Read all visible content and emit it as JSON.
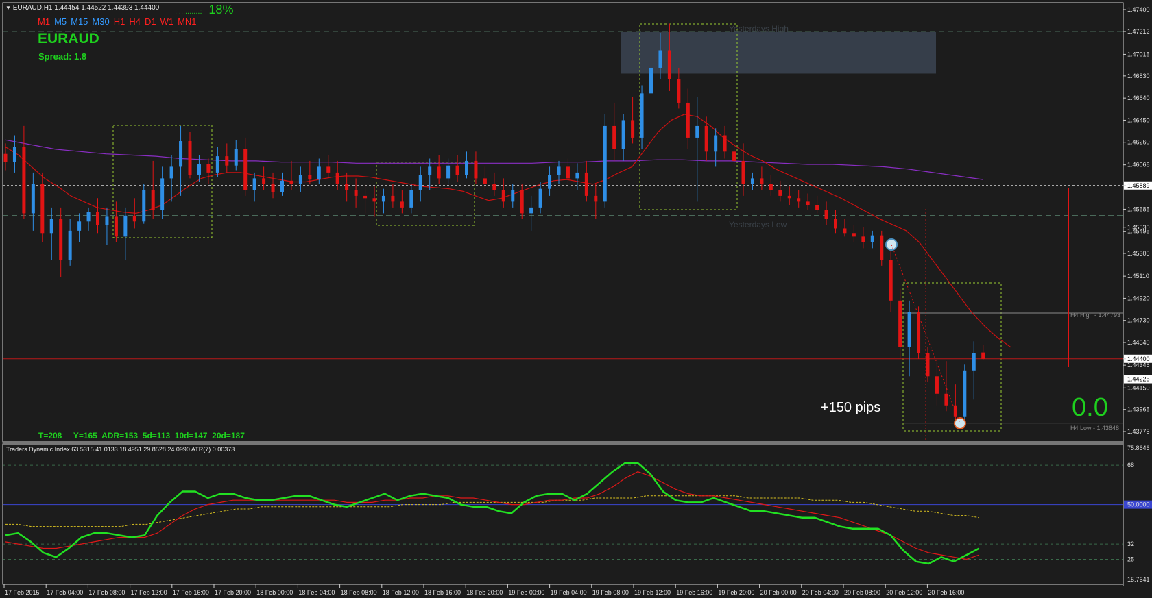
{
  "header": {
    "symbol_line": "EURAUD,H1  1.44454 1.44522 1.44393 1.44400",
    "progress_bar": ":|..........:",
    "progress_pct": "18%",
    "timeframes": [
      {
        "label": "M1",
        "color": "#ff2020"
      },
      {
        "label": "M5",
        "color": "#3399ff"
      },
      {
        "label": "M15",
        "color": "#3399ff"
      },
      {
        "label": "M30",
        "color": "#3399ff"
      },
      {
        "label": "H1",
        "color": "#ff2020"
      },
      {
        "label": "H4",
        "color": "#ff2020"
      },
      {
        "label": "D1",
        "color": "#ff2020"
      },
      {
        "label": "W1",
        "color": "#ff2020"
      },
      {
        "label": "MN1",
        "color": "#ff2020"
      }
    ],
    "pair": "EURAUD",
    "spread": "Spread: 1.8"
  },
  "overlay": {
    "yesterdays_high": "Yesterdays High",
    "yesterdays_low": "Yesterdays Low",
    "pips": "+150 pips",
    "big_value": "0.0",
    "h4_high": "H4 High - 1.44793",
    "h4_low": "H4 Low - 1.43848",
    "stats": "T=208     Y=165  ADR=153  5d=113  10d=147  20d=187"
  },
  "indicator": {
    "title": "Traders Dynamic Index 63.5315 41.0133 18.4951 29.8528 24.0990  ATR(7) 0.00373"
  },
  "colors": {
    "bull": "#2f8fe6",
    "bear": "#e11414",
    "ma_red": "#cc1111",
    "ma_purple": "#8a2ec4",
    "green_text": "#1ed01e",
    "box": "#9acd32"
  },
  "chart_data": {
    "type": "candlestick",
    "symbol": "EURAUD",
    "timeframe": "H1",
    "price_axis_labels": [
      "1.47400",
      "1.47212",
      "1.47015",
      "1.46830",
      "1.46640",
      "1.46450",
      "1.46260",
      "1.46066",
      "1.45889",
      "1.45685",
      "1.45530",
      "1.45495",
      "1.45305",
      "1.45110",
      "1.44920",
      "1.44730",
      "1.44540",
      "1.44400",
      "1.44345",
      "1.44225",
      "1.44150",
      "1.43965",
      "1.43775"
    ],
    "price_ylim": [
      1.4375,
      1.4746
    ],
    "time_labels": [
      "17 Feb 2015",
      "17 Feb 04:00",
      "17 Feb 08:00",
      "17 Feb 12:00",
      "17 Feb 16:00",
      "17 Feb 20:00",
      "18 Feb 00:00",
      "18 Feb 04:00",
      "18 Feb 08:00",
      "18 Feb 12:00",
      "18 Feb 16:00",
      "18 Feb 20:00",
      "19 Feb 00:00",
      "19 Feb 04:00",
      "19 Feb 08:00",
      "19 Feb 12:00",
      "19 Feb 16:00",
      "19 Feb 20:00",
      "20 Feb 00:00",
      "20 Feb 04:00",
      "20 Feb 08:00",
      "20 Feb 12:00",
      "20 Feb 16:00"
    ],
    "horizontal_levels": [
      {
        "name": "Yesterdays High",
        "value": 1.47212
      },
      {
        "name": "Yesterdays Low",
        "value": 1.45632
      },
      {
        "name": "Current",
        "value": 1.444
      },
      {
        "name": "Level",
        "value": 1.45889
      },
      {
        "name": "Level",
        "value": 1.44225
      },
      {
        "name": "H4 High",
        "value": 1.44793
      },
      {
        "name": "H4 Low",
        "value": 1.43848
      }
    ],
    "candles": [
      [
        1.4616,
        1.4625,
        1.4602,
        1.4609
      ],
      [
        1.4609,
        1.4632,
        1.46,
        1.4622
      ],
      [
        1.4622,
        1.464,
        1.456,
        1.4565
      ],
      [
        1.4565,
        1.46,
        1.455,
        1.459
      ],
      [
        1.459,
        1.46,
        1.454,
        1.4548
      ],
      [
        1.4548,
        1.457,
        1.4525,
        1.456
      ],
      [
        1.456,
        1.457,
        1.451,
        1.4525
      ],
      [
        1.4525,
        1.456,
        1.452,
        1.455
      ],
      [
        1.455,
        1.4565,
        1.454,
        1.4558
      ],
      [
        1.4558,
        1.457,
        1.455,
        1.4566
      ],
      [
        1.4566,
        1.4578,
        1.4548,
        1.4555
      ],
      [
        1.4555,
        1.457,
        1.4538,
        1.4562
      ],
      [
        1.4562,
        1.4575,
        1.454,
        1.4545
      ],
      [
        1.4545,
        1.457,
        1.4525,
        1.4563
      ],
      [
        1.4563,
        1.4578,
        1.4552,
        1.4558
      ],
      [
        1.4558,
        1.459,
        1.4556,
        1.4585
      ],
      [
        1.4585,
        1.461,
        1.456,
        1.4568
      ],
      [
        1.4568,
        1.4605,
        1.456,
        1.4595
      ],
      [
        1.4595,
        1.4615,
        1.4575,
        1.4605
      ],
      [
        1.4605,
        1.464,
        1.458,
        1.4627
      ],
      [
        1.4627,
        1.4635,
        1.4595,
        1.4598
      ],
      [
        1.4598,
        1.4615,
        1.4592,
        1.4607
      ],
      [
        1.4607,
        1.4612,
        1.459,
        1.46
      ],
      [
        1.46,
        1.4622,
        1.4596,
        1.4614
      ],
      [
        1.4614,
        1.4625,
        1.46,
        1.4606
      ],
      [
        1.4606,
        1.4628,
        1.4602,
        1.462
      ],
      [
        1.462,
        1.463,
        1.458,
        1.4585
      ],
      [
        1.4585,
        1.46,
        1.4575,
        1.4595
      ],
      [
        1.4595,
        1.4605,
        1.4585,
        1.459
      ],
      [
        1.459,
        1.46,
        1.4578,
        1.4583
      ],
      [
        1.4583,
        1.46,
        1.458,
        1.4593
      ],
      [
        1.4593,
        1.461,
        1.4585,
        1.459
      ],
      [
        1.459,
        1.4605,
        1.4583,
        1.4598
      ],
      [
        1.4598,
        1.461,
        1.459,
        1.4594
      ],
      [
        1.4594,
        1.4612,
        1.459,
        1.4605
      ],
      [
        1.4605,
        1.4615,
        1.4595,
        1.46
      ],
      [
        1.46,
        1.461,
        1.4585,
        1.459
      ],
      [
        1.459,
        1.46,
        1.4575,
        1.4585
      ],
      [
        1.4585,
        1.4595,
        1.457,
        1.458
      ],
      [
        1.458,
        1.459,
        1.4565,
        1.4578
      ],
      [
        1.4578,
        1.4588,
        1.4562,
        1.4575
      ],
      [
        1.4575,
        1.4586,
        1.4565,
        1.458
      ],
      [
        1.458,
        1.459,
        1.457,
        1.4575
      ],
      [
        1.4575,
        1.4585,
        1.4565,
        1.457
      ],
      [
        1.457,
        1.459,
        1.4565,
        1.4585
      ],
      [
        1.4585,
        1.4605,
        1.4575,
        1.4598
      ],
      [
        1.4598,
        1.4612,
        1.4585,
        1.4605
      ],
      [
        1.4605,
        1.4615,
        1.459,
        1.4595
      ],
      [
        1.4595,
        1.4612,
        1.459,
        1.4606
      ],
      [
        1.4606,
        1.4615,
        1.4592,
        1.4598
      ],
      [
        1.4598,
        1.4618,
        1.4595,
        1.461
      ],
      [
        1.461,
        1.4618,
        1.459,
        1.4595
      ],
      [
        1.4595,
        1.4605,
        1.4585,
        1.459
      ],
      [
        1.459,
        1.46,
        1.458,
        1.4585
      ],
      [
        1.4585,
        1.4595,
        1.457,
        1.4575
      ],
      [
        1.4575,
        1.459,
        1.457,
        1.4585
      ],
      [
        1.4585,
        1.459,
        1.456,
        1.4565
      ],
      [
        1.4565,
        1.458,
        1.455,
        1.457
      ],
      [
        1.457,
        1.4592,
        1.4565,
        1.4586
      ],
      [
        1.4586,
        1.4605,
        1.458,
        1.4598
      ],
      [
        1.4598,
        1.461,
        1.459,
        1.4605
      ],
      [
        1.4605,
        1.4612,
        1.459,
        1.4595
      ],
      [
        1.4595,
        1.4608,
        1.4585,
        1.46
      ],
      [
        1.46,
        1.461,
        1.4575,
        1.458
      ],
      [
        1.458,
        1.459,
        1.456,
        1.4575
      ],
      [
        1.4575,
        1.465,
        1.457,
        1.464
      ],
      [
        1.464,
        1.466,
        1.461,
        1.462
      ],
      [
        1.462,
        1.465,
        1.461,
        1.4645
      ],
      [
        1.4645,
        1.4665,
        1.4625,
        1.463
      ],
      [
        1.463,
        1.4675,
        1.462,
        1.4668
      ],
      [
        1.4668,
        1.4728,
        1.466,
        1.469
      ],
      [
        1.469,
        1.472,
        1.468,
        1.4705
      ],
      [
        1.4705,
        1.4728,
        1.467,
        1.468
      ],
      [
        1.468,
        1.469,
        1.4655,
        1.466
      ],
      [
        1.466,
        1.4672,
        1.462,
        1.463
      ],
      [
        1.463,
        1.4665,
        1.4575,
        1.464
      ],
      [
        1.464,
        1.4648,
        1.461,
        1.4618
      ],
      [
        1.4618,
        1.4638,
        1.4605,
        1.4632
      ],
      [
        1.4632,
        1.464,
        1.4612,
        1.4618
      ],
      [
        1.4618,
        1.463,
        1.4605,
        1.461
      ],
      [
        1.461,
        1.4625,
        1.458,
        1.459
      ],
      [
        1.459,
        1.46,
        1.4585,
        1.4595
      ],
      [
        1.4595,
        1.4605,
        1.4585,
        1.459
      ],
      [
        1.459,
        1.4598,
        1.458,
        1.4585
      ],
      [
        1.4585,
        1.4593,
        1.4575,
        1.458
      ],
      [
        1.458,
        1.4588,
        1.4572,
        1.4578
      ],
      [
        1.4578,
        1.4585,
        1.457,
        1.4575
      ],
      [
        1.4575,
        1.4582,
        1.4568,
        1.4572
      ],
      [
        1.4572,
        1.458,
        1.4565,
        1.4568
      ],
      [
        1.4568,
        1.4575,
        1.4555,
        1.456
      ],
      [
        1.456,
        1.4568,
        1.4548,
        1.4552
      ],
      [
        1.4552,
        1.456,
        1.4545,
        1.4548
      ],
      [
        1.4548,
        1.4555,
        1.454,
        1.4545
      ],
      [
        1.4545,
        1.4553,
        1.4535,
        1.454
      ],
      [
        1.454,
        1.455,
        1.4535,
        1.4546
      ],
      [
        1.4546,
        1.455,
        1.452,
        1.4525
      ],
      [
        1.4525,
        1.4535,
        1.448,
        1.449
      ],
      [
        1.449,
        1.45,
        1.444,
        1.445
      ],
      [
        1.445,
        1.449,
        1.4425,
        1.448
      ],
      [
        1.448,
        1.4485,
        1.444,
        1.4445
      ],
      [
        1.4445,
        1.445,
        1.442,
        1.4425
      ],
      [
        1.4425,
        1.444,
        1.44,
        1.441
      ],
      [
        1.441,
        1.4438,
        1.4395,
        1.44
      ],
      [
        1.44,
        1.4418,
        1.4385,
        1.439
      ],
      [
        1.439,
        1.4435,
        1.4385,
        1.443
      ],
      [
        1.443,
        1.4455,
        1.4405,
        1.4445
      ],
      [
        1.44454,
        1.44522,
        1.44393,
        1.444
      ]
    ],
    "ma_red": [
      1.4622,
      1.4615,
      1.4605,
      1.4595,
      1.4588,
      1.458,
      1.4575,
      1.457,
      1.4568,
      1.4566,
      1.4565,
      1.4568,
      1.4572,
      1.458,
      1.4588,
      1.4595,
      1.4598,
      1.46,
      1.46,
      1.4598,
      1.4596,
      1.4594,
      1.4592,
      1.4592,
      1.4594,
      1.4596,
      1.4597,
      1.4597,
      1.4596,
      1.4594,
      1.4592,
      1.459,
      1.4588,
      1.4587,
      1.4586,
      1.4584,
      1.458,
      1.4576,
      1.4578,
      1.4582,
      1.4586,
      1.459,
      1.4593,
      1.4594,
      1.4592,
      1.459,
      1.4594,
      1.46,
      1.4605,
      1.462,
      1.4635,
      1.4645,
      1.465,
      1.4648,
      1.464,
      1.463,
      1.4622,
      1.4615,
      1.461,
      1.4603,
      1.4598,
      1.4593,
      1.4588,
      1.4583,
      1.4578,
      1.4572,
      1.4566,
      1.456,
      1.4555,
      1.455,
      1.454,
      1.4525,
      1.451,
      1.4495,
      1.448,
      1.4468,
      1.4458,
      1.445
    ],
    "ma_purple": [
      1.4628,
      1.4624,
      1.462,
      1.4618,
      1.4616,
      1.4615,
      1.4614,
      1.4612,
      1.4611,
      1.461,
      1.461,
      1.4609,
      1.4609,
      1.4609,
      1.4608,
      1.4608,
      1.4608,
      1.4608,
      1.4608,
      1.4608,
      1.4608,
      1.4608,
      1.4609,
      1.4609,
      1.461,
      1.461,
      1.4611,
      1.4611,
      1.461,
      1.461,
      1.4609,
      1.4608,
      1.4607,
      1.4607,
      1.4606,
      1.4605,
      1.4603,
      1.46,
      1.4597,
      1.4594
    ],
    "tdi": {
      "title": "Traders Dynamic Index",
      "values": [
        63.5315,
        41.0133,
        18.4951,
        29.8528,
        24.099
      ],
      "atr": "ATR(7) 0.00373",
      "axis_labels": [
        "75.8646",
        "68",
        "50.0000",
        "32",
        "25",
        "15.7641"
      ],
      "ylim": [
        15.7641,
        75.8646
      ],
      "levels": [
        68,
        50,
        32
      ],
      "green": [
        36,
        37,
        33,
        28,
        26,
        30,
        35,
        37,
        37,
        36,
        35,
        36,
        45,
        51,
        56,
        56,
        53,
        55,
        55,
        53,
        52,
        52,
        53,
        54,
        54,
        52,
        50,
        49,
        51,
        53,
        55,
        52,
        54,
        55,
        54,
        53,
        50,
        49,
        49,
        47,
        46,
        51,
        54,
        55,
        55,
        52,
        55,
        60,
        65,
        69,
        69,
        64,
        56,
        52,
        51,
        51,
        53,
        51,
        49,
        47,
        47,
        46,
        45,
        44,
        44,
        42,
        40,
        39,
        39,
        39,
        36,
        29,
        24,
        23,
        26,
        24,
        27,
        30
      ],
      "red": [
        33,
        32,
        31,
        30,
        30,
        31,
        32,
        33,
        34,
        35,
        35,
        35,
        37,
        41,
        45,
        48,
        50,
        51,
        52,
        52,
        52,
        52,
        52,
        52,
        52,
        52,
        52,
        51,
        51,
        51,
        52,
        52,
        53,
        53,
        54,
        54,
        53,
        53,
        52,
        51,
        50,
        50,
        51,
        52,
        52,
        53,
        53,
        55,
        58,
        62,
        65,
        63,
        60,
        57,
        55,
        54,
        54,
        53,
        52,
        51,
        50,
        49,
        48,
        47,
        46,
        45,
        44,
        42,
        40,
        38,
        36,
        33,
        30,
        28,
        27,
        26,
        25,
        27
      ],
      "yellow": [
        41,
        41,
        40,
        40,
        40,
        40,
        40,
        40,
        40,
        40,
        41,
        41,
        42,
        43,
        44,
        45,
        46,
        47,
        48,
        48,
        49,
        49,
        49,
        49,
        49,
        49,
        49,
        49,
        49,
        49,
        49,
        50,
        50,
        50,
        50,
        51,
        51,
        51,
        51,
        51,
        51,
        51,
        51,
        52,
        52,
        52,
        53,
        53,
        53,
        53,
        54,
        54,
        54,
        54,
        54,
        54,
        54,
        54,
        53,
        53,
        53,
        53,
        53,
        52,
        52,
        52,
        51,
        51,
        50,
        49,
        48,
        47,
        47,
        46,
        45,
        45,
        44
      ]
    }
  }
}
